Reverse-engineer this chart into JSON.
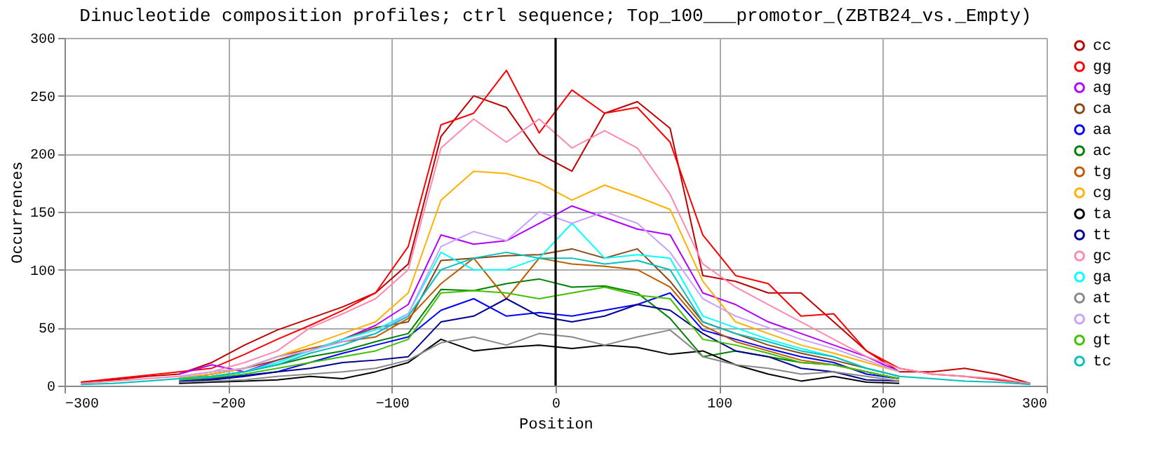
{
  "chart_data": {
    "type": "line",
    "title": "Dinucleotide composition profiles; ctrl sequence; Top_100___promotor_(ZBTB24_vs._Empty)",
    "xlabel": "Position",
    "ylabel": "Occurrences",
    "x": [
      -290,
      -270,
      -250,
      -230,
      -210,
      -190,
      -170,
      -150,
      -130,
      -110,
      -90,
      -70,
      -50,
      -30,
      -10,
      10,
      30,
      50,
      70,
      90,
      110,
      130,
      150,
      170,
      190,
      210,
      230,
      250,
      270,
      290
    ],
    "series": [
      {
        "name": "cc",
        "color": "#c00000",
        "values": [
          3,
          5,
          8,
          10,
          20,
          35,
          48,
          58,
          68,
          80,
          105,
          215,
          250,
          240,
          200,
          185,
          235,
          245,
          222,
          95,
          90,
          80,
          80,
          55,
          30,
          12,
          12,
          15,
          10,
          2
        ]
      },
      {
        "name": "gg",
        "color": "#ff0000",
        "values": [
          3,
          6,
          9,
          12,
          15,
          27,
          40,
          52,
          65,
          80,
          120,
          225,
          235,
          272,
          218,
          255,
          235,
          240,
          210,
          130,
          95,
          88,
          60,
          62,
          30,
          15,
          10,
          8,
          5,
          2
        ]
      },
      {
        "name": "ag",
        "color": "#b000ff",
        "values": [
          null,
          null,
          null,
          10,
          18,
          12,
          22,
          30,
          40,
          52,
          70,
          130,
          122,
          125,
          140,
          155,
          145,
          135,
          130,
          80,
          70,
          55,
          45,
          35,
          25,
          12,
          null,
          null,
          null,
          null
        ]
      },
      {
        "name": "ca",
        "color": "#8b4513",
        "values": [
          null,
          null,
          null,
          6,
          10,
          15,
          22,
          30,
          40,
          50,
          55,
          108,
          110,
          112,
          113,
          118,
          110,
          118,
          90,
          55,
          45,
          35,
          28,
          22,
          15,
          8,
          null,
          null,
          null,
          null
        ]
      },
      {
        "name": "aa",
        "color": "#0000ff",
        "values": [
          null,
          null,
          null,
          4,
          6,
          9,
          12,
          20,
          28,
          35,
          42,
          65,
          75,
          60,
          63,
          60,
          65,
          70,
          80,
          48,
          40,
          32,
          25,
          20,
          10,
          6,
          null,
          null,
          null,
          null
        ]
      },
      {
        "name": "ac",
        "color": "#008000",
        "values": [
          null,
          null,
          null,
          6,
          8,
          12,
          18,
          25,
          30,
          38,
          45,
          83,
          82,
          88,
          92,
          85,
          86,
          80,
          58,
          25,
          30,
          25,
          20,
          18,
          12,
          6,
          null,
          null,
          null,
          null
        ]
      },
      {
        "name": "tg",
        "color": "#c05a00",
        "values": [
          null,
          null,
          null,
          6,
          10,
          15,
          25,
          32,
          38,
          42,
          58,
          88,
          110,
          75,
          110,
          105,
          103,
          100,
          85,
          52,
          38,
          30,
          22,
          18,
          12,
          6,
          null,
          null,
          null,
          null
        ]
      },
      {
        "name": "cg",
        "color": "#ffb000",
        "values": [
          null,
          null,
          null,
          7,
          10,
          15,
          25,
          35,
          45,
          55,
          80,
          160,
          185,
          183,
          175,
          160,
          173,
          163,
          152,
          90,
          55,
          45,
          35,
          28,
          20,
          12,
          null,
          null,
          null,
          null
        ]
      },
      {
        "name": "ta",
        "color": "#000000",
        "values": [
          null,
          null,
          null,
          2,
          3,
          4,
          5,
          8,
          6,
          12,
          20,
          40,
          30,
          33,
          35,
          32,
          35,
          33,
          27,
          30,
          18,
          10,
          4,
          8,
          3,
          2,
          null,
          null,
          null,
          null
        ]
      },
      {
        "name": "tt",
        "color": "#000090",
        "values": [
          null,
          null,
          null,
          3,
          5,
          8,
          12,
          15,
          20,
          22,
          25,
          55,
          60,
          75,
          60,
          55,
          60,
          70,
          65,
          45,
          30,
          25,
          15,
          12,
          5,
          4,
          null,
          null,
          null,
          null
        ]
      },
      {
        "name": "gc",
        "color": "#ff88b0",
        "values": [
          2,
          4,
          6,
          8,
          12,
          20,
          30,
          50,
          62,
          75,
          100,
          205,
          230,
          210,
          230,
          205,
          220,
          205,
          165,
          105,
          85,
          70,
          55,
          40,
          25,
          15,
          10,
          8,
          6,
          2
        ]
      },
      {
        "name": "ga",
        "color": "#00ffff",
        "values": [
          null,
          null,
          null,
          6,
          8,
          12,
          20,
          30,
          40,
          48,
          62,
          115,
          100,
          100,
          110,
          140,
          110,
          113,
          110,
          60,
          50,
          40,
          32,
          25,
          15,
          8,
          null,
          null,
          null,
          null
        ]
      },
      {
        "name": "at",
        "color": "#888888",
        "values": [
          null,
          null,
          null,
          3,
          4,
          5,
          8,
          10,
          12,
          15,
          22,
          37,
          42,
          35,
          45,
          42,
          35,
          42,
          48,
          25,
          18,
          15,
          10,
          12,
          8,
          4,
          null,
          null,
          null,
          null
        ]
      },
      {
        "name": "ct",
        "color": "#c8a0ff",
        "values": [
          null,
          null,
          null,
          8,
          12,
          15,
          25,
          30,
          38,
          45,
          62,
          120,
          133,
          125,
          150,
          140,
          150,
          140,
          115,
          75,
          60,
          50,
          40,
          32,
          22,
          12,
          null,
          null,
          null,
          null
        ]
      },
      {
        "name": "gt",
        "color": "#40c000",
        "values": [
          null,
          null,
          null,
          5,
          7,
          10,
          15,
          20,
          25,
          30,
          40,
          80,
          82,
          80,
          75,
          80,
          85,
          78,
          75,
          40,
          35,
          28,
          20,
          18,
          12,
          6,
          null,
          null,
          null,
          null
        ]
      },
      {
        "name": "tc",
        "color": "#00c0c0",
        "values": [
          1,
          2,
          4,
          6,
          8,
          12,
          18,
          28,
          35,
          45,
          60,
          100,
          110,
          115,
          110,
          110,
          105,
          108,
          100,
          55,
          45,
          38,
          30,
          25,
          15,
          8,
          6,
          4,
          3,
          1
        ]
      }
    ],
    "xlim": [
      -300,
      300
    ],
    "xticks": [
      -300,
      -200,
      -100,
      0,
      100,
      200,
      300
    ],
    "ylim": [
      0,
      300
    ],
    "yticks": [
      0,
      50,
      100,
      150,
      200,
      250,
      300
    ],
    "ref_lines": [
      {
        "axis": "x",
        "value": 0,
        "color": "#000000"
      }
    ],
    "grid": true,
    "legend": "top right"
  }
}
